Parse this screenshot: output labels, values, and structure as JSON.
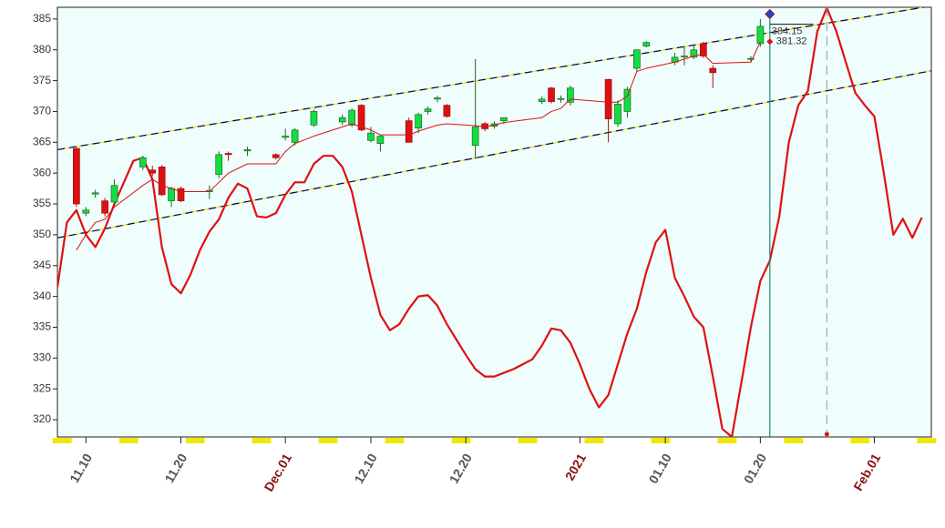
{
  "chart_data": {
    "type": "candlestick",
    "xlim": [
      "11.07",
      "02.07"
    ],
    "ylim": [
      317.2,
      386.9
    ],
    "yticks": [
      320,
      325,
      330,
      335,
      340,
      345,
      350,
      355,
      360,
      365,
      370,
      375,
      380,
      385
    ],
    "xticks": [
      {
        "value": "11.10",
        "label": "11.10",
        "color": "#555555"
      },
      {
        "value": "11.20",
        "label": "11.20",
        "color": "#555555"
      },
      {
        "value": "12.01",
        "label": "Dec.01",
        "color": "#8b1010"
      },
      {
        "value": "12.10",
        "label": "12.10",
        "color": "#555555"
      },
      {
        "value": "12.20",
        "label": "12.20",
        "color": "#555555"
      },
      {
        "value": "01.01",
        "label": "2021",
        "color": "#8b1010"
      },
      {
        "value": "01.10",
        "label": "01.10",
        "color": "#555555"
      },
      {
        "value": "01.20",
        "label": "01.20",
        "color": "#555555"
      },
      {
        "value": "02.01",
        "label": "Feb.01",
        "color": "#8b1010"
      }
    ],
    "up_color": "#11dd44",
    "down_color": "#dd1111",
    "candles": {
      "x": [
        "11.09",
        "11.10",
        "11.11",
        "11.12",
        "11.13",
        "11.16",
        "11.17",
        "11.18",
        "11.19",
        "11.20",
        "11.23",
        "11.24",
        "11.25",
        "11.27",
        "11.30",
        "12.01",
        "12.02",
        "12.04",
        "12.07",
        "12.08",
        "12.09",
        "12.10",
        "12.11",
        "12.14",
        "12.15",
        "12.16",
        "12.17",
        "12.18",
        "12.21",
        "12.22",
        "12.23",
        "12.24",
        "12.28",
        "12.29",
        "12.30",
        "12.31",
        "01.04",
        "01.05",
        "01.06",
        "01.07",
        "01.08",
        "01.11",
        "01.12",
        "01.13",
        "01.14",
        "01.15",
        "01.19",
        "01.20"
      ],
      "open": [
        364,
        353.5,
        356.6,
        355.5,
        355.3,
        361,
        360.5,
        361,
        355.5,
        357.5,
        357,
        359.8,
        363.2,
        363.6,
        363,
        365.8,
        365,
        367.8,
        368.3,
        367.8,
        371,
        365.3,
        364.8,
        368.5,
        367.3,
        370,
        372,
        371,
        364.5,
        368,
        367.6,
        368.5,
        371.6,
        373.8,
        372,
        371.5,
        375.2,
        368,
        370,
        377,
        380.6,
        378,
        379,
        378.8,
        381,
        377,
        378.6,
        381
      ],
      "high": [
        364.2,
        354.5,
        357.3,
        356,
        359,
        362.8,
        361.2,
        361.3,
        357.8,
        357.8,
        358,
        363.5,
        363.5,
        364.3,
        363.2,
        367.2,
        367.3,
        370.3,
        369.5,
        370.5,
        371.2,
        367.5,
        366.3,
        369,
        369.8,
        370.8,
        372.5,
        371.2,
        378.5,
        368.3,
        368.4,
        369,
        372.4,
        374,
        372.6,
        374.2,
        375.3,
        371.8,
        374,
        380,
        381.4,
        379.5,
        380.5,
        380.8,
        381.3,
        377.5,
        379,
        385
      ],
      "low": [
        354.5,
        353,
        356,
        353,
        355,
        360.5,
        359.5,
        356.3,
        354.5,
        355.3,
        355.8,
        359.2,
        362,
        362.8,
        362.2,
        365.3,
        364.5,
        367.5,
        367.8,
        367.5,
        366.8,
        365,
        363.5,
        365,
        366.5,
        369.5,
        371.5,
        369,
        362.3,
        366.8,
        367.2,
        368,
        371.2,
        371.3,
        371.4,
        371,
        365,
        367.5,
        369,
        376.5,
        380.4,
        377.5,
        377.5,
        378.5,
        378.7,
        373.8,
        378,
        380.5
      ],
      "close": [
        355,
        354,
        356.8,
        353.5,
        358,
        362.5,
        360,
        356.5,
        357.5,
        355.5,
        357.2,
        363,
        363,
        363.8,
        362.5,
        366,
        367,
        370,
        369,
        370.2,
        367,
        366.5,
        366,
        365,
        369.5,
        370.4,
        372.2,
        369.2,
        367.5,
        367.2,
        368,
        369,
        372,
        371.6,
        372.1,
        373.8,
        368.8,
        371.2,
        373.6,
        380,
        381.2,
        378.8,
        379,
        380,
        379,
        376.3,
        378.6,
        383.8
      ],
      "average": [
        347.5,
        350,
        352,
        352.5,
        354.5,
        358,
        359,
        358,
        357.5,
        357,
        357,
        358.5,
        360,
        361.5,
        361.5,
        363.5,
        364.8,
        366,
        367.5,
        368,
        367.5,
        367,
        366.2,
        366.2,
        366.8,
        367.3,
        367.8,
        368,
        367.7,
        367.5,
        367.8,
        368.2,
        369,
        370,
        370.5,
        372,
        371.5,
        371.5,
        372.5,
        376.5,
        377,
        378,
        378.5,
        379,
        379.3,
        377.8,
        378,
        381.3
      ],
      "average_color": "#dd1111"
    },
    "oscillator": {
      "color": "#e01010",
      "x": [
        "11.07",
        "11.08",
        "11.09",
        "11.10",
        "11.11",
        "11.12",
        "11.13",
        "11.14",
        "11.15",
        "11.16",
        "11.17",
        "11.18",
        "11.19",
        "11.20",
        "11.21",
        "11.22",
        "11.23",
        "11.24",
        "11.25",
        "11.26",
        "11.27",
        "11.28",
        "11.29",
        "11.30",
        "12.01",
        "12.02",
        "12.03",
        "12.04",
        "12.05",
        "12.06",
        "12.07",
        "12.08",
        "12.09",
        "12.10",
        "12.11",
        "12.12",
        "12.13",
        "12.14",
        "12.15",
        "12.16",
        "12.17",
        "12.18",
        "12.19",
        "12.20",
        "12.21",
        "12.22",
        "12.23",
        "12.24",
        "12.25",
        "12.26",
        "12.27",
        "12.28",
        "12.29",
        "12.30",
        "12.31",
        "01.01",
        "01.02",
        "01.03",
        "01.04",
        "01.05",
        "01.06",
        "01.07",
        "01.08",
        "01.09",
        "01.10",
        "01.11",
        "01.12",
        "01.13",
        "01.14",
        "01.15",
        "01.16",
        "01.17",
        "01.18",
        "01.19",
        "01.20",
        "01.21",
        "01.22",
        "01.23",
        "01.24",
        "01.25",
        "01.26",
        "01.27",
        "01.28",
        "01.29",
        "01.30",
        "01.31",
        "02.01",
        "02.02",
        "02.03",
        "02.04",
        "02.05",
        "02.06"
      ],
      "values": [
        341.5,
        352,
        354,
        350,
        348,
        351,
        355,
        358.5,
        362,
        362.5,
        359,
        348,
        342,
        340.5,
        343.5,
        347.5,
        350.5,
        352.5,
        356,
        358.3,
        357.5,
        353,
        352.8,
        353.5,
        356.5,
        358.5,
        358.5,
        361.5,
        362.8,
        362.8,
        361,
        357,
        350,
        343,
        337,
        334.5,
        335.5,
        338,
        340,
        340.2,
        338.5,
        335.5,
        333,
        330.5,
        328.2,
        327,
        327,
        327.6,
        328.2,
        329,
        329.8,
        332,
        334.8,
        334.5,
        332.5,
        329,
        325,
        322,
        324,
        329,
        334,
        338,
        344,
        348.8,
        350.8,
        343,
        340,
        336.7,
        335,
        327,
        318.5,
        317.2,
        326,
        335,
        342.5,
        345.8,
        353,
        365,
        371,
        373.3,
        383,
        386.8,
        383,
        378,
        373,
        371,
        369.2,
        360,
        350,
        352.6,
        349.5,
        352.8
      ]
    },
    "channels": [
      {
        "from": [
          "11.07",
          363.8
        ],
        "to": [
          "02.07",
          387.1
        ]
      },
      {
        "from": [
          "11.07",
          349.5
        ],
        "to": [
          "02.07",
          376.6
        ]
      }
    ],
    "cursor": {
      "x": "01.21",
      "high": 385.8,
      "values": [
        384.15,
        381.32
      ],
      "color": "#1a8a7a"
    },
    "projection": {
      "x": "01.27"
    }
  }
}
